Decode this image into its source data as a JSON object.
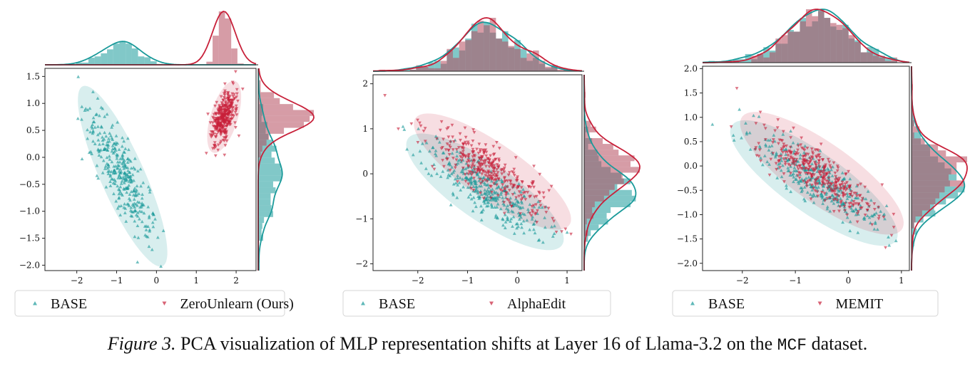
{
  "colors": {
    "base": "#1a9a9a",
    "edited": "#c8213a",
    "edited_hist": "#b44a5c"
  },
  "caption": {
    "label": "Figure 3.",
    "text": "PCA visualization of MLP representation shifts at Layer 16 of Llama-3.2 on the",
    "dataset": "MCF",
    "end": "dataset."
  },
  "chart_data": [
    {
      "type": "scatter",
      "title": "",
      "xlabel": "",
      "ylabel": "",
      "xlim": [
        -2.8,
        2.5
      ],
      "ylim": [
        -2.1,
        1.65
      ],
      "xticks": [
        "−2",
        "−1",
        "0",
        "1",
        "2"
      ],
      "yticks": [
        "1.5",
        "1.0",
        "0.5",
        "0.0",
        "−0.5",
        "−1.0",
        "−1.5",
        "−2.0"
      ],
      "legend": {
        "placement": "bottom",
        "entries": [
          "BASE",
          "ZeroUnlearn (Ours)"
        ]
      },
      "series": [
        {
          "name": "BASE",
          "marker": "triangle-up",
          "color": "#1a9a9a",
          "cluster": {
            "center": [
              -0.9,
              -0.3
            ],
            "spread_major": 0.72,
            "spread_minor": 0.2,
            "angle_deg": -58
          },
          "ellipse": {
            "center": [
              -0.85,
              -0.35
            ],
            "semi_major": 1.95,
            "semi_minor": 0.52,
            "angle_deg": -58
          }
        },
        {
          "name": "ZeroUnlearn (Ours)",
          "marker": "triangle-down",
          "color": "#c8213a",
          "cluster": {
            "center": [
              1.7,
              0.75
            ],
            "spread_major": 0.28,
            "spread_minor": 0.12,
            "angle_deg": 65
          },
          "ellipse": {
            "center": [
              1.7,
              0.75
            ],
            "semi_major": 0.72,
            "semi_minor": 0.33,
            "angle_deg": 65
          }
        }
      ]
    },
    {
      "type": "scatter",
      "title": "",
      "xlabel": "",
      "ylabel": "",
      "xlim": [
        -2.9,
        1.3
      ],
      "ylim": [
        -2.15,
        2.2
      ],
      "xticks": [
        "−2",
        "−1",
        "0",
        "1"
      ],
      "yticks": [
        "2",
        "1",
        "0",
        "−1",
        "−2"
      ],
      "legend": {
        "placement": "bottom",
        "entries": [
          "BASE",
          "AlphaEdit"
        ]
      },
      "series": [
        {
          "name": "BASE",
          "marker": "triangle-up",
          "color": "#1a9a9a",
          "cluster": {
            "center": [
              -0.65,
              -0.35
            ],
            "spread_major": 0.72,
            "spread_minor": 0.22,
            "angle_deg": -38
          },
          "ellipse": {
            "center": [
              -0.65,
              -0.4
            ],
            "semi_major": 1.95,
            "semi_minor": 0.62,
            "angle_deg": -38
          }
        },
        {
          "name": "AlphaEdit",
          "marker": "triangle-down",
          "color": "#c8213a",
          "cluster": {
            "center": [
              -0.55,
              0.05
            ],
            "spread_major": 0.72,
            "spread_minor": 0.22,
            "angle_deg": -38
          },
          "ellipse": {
            "center": [
              -0.5,
              0.05
            ],
            "semi_major": 1.95,
            "semi_minor": 0.6,
            "angle_deg": -38
          }
        }
      ]
    },
    {
      "type": "scatter",
      "title": "",
      "xlabel": "",
      "ylabel": "",
      "xlim": [
        -2.75,
        1.15
      ],
      "ylim": [
        -2.15,
        2.05
      ],
      "xticks": [
        "−2",
        "−1",
        "0",
        "1"
      ],
      "yticks": [
        "2.0",
        "1.5",
        "1.0",
        "0.5",
        "0.0",
        "−0.5",
        "−1.0",
        "−1.5",
        "−2.0"
      ],
      "legend": {
        "placement": "bottom",
        "entries": [
          "BASE",
          "MEMIT"
        ]
      },
      "series": [
        {
          "name": "BASE",
          "marker": "triangle-up",
          "color": "#1a9a9a",
          "cluster": {
            "center": [
              -0.6,
              -0.3
            ],
            "spread_major": 0.68,
            "spread_minor": 0.2,
            "angle_deg": -38
          },
          "ellipse": {
            "center": [
              -0.65,
              -0.35
            ],
            "semi_major": 1.95,
            "semi_minor": 0.6,
            "angle_deg": -38
          }
        },
        {
          "name": "MEMIT",
          "marker": "triangle-down",
          "color": "#c8213a",
          "cluster": {
            "center": [
              -0.55,
              -0.15
            ],
            "spread_major": 0.68,
            "spread_minor": 0.2,
            "angle_deg": -38
          },
          "ellipse": {
            "center": [
              -0.5,
              -0.15
            ],
            "semi_major": 1.9,
            "semi_minor": 0.6,
            "angle_deg": -38
          }
        }
      ]
    }
  ]
}
